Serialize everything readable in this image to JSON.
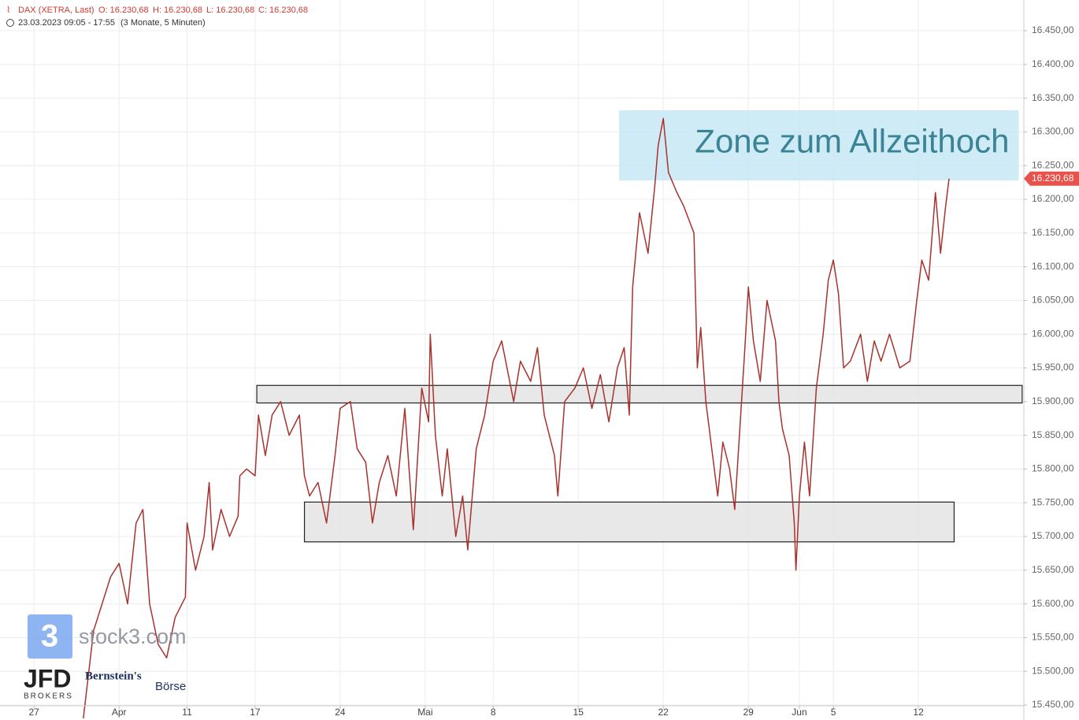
{
  "chart_data": {
    "type": "line",
    "header": {
      "instrument": "DAX (XETRA, Last)",
      "open": "O: 16.230,68",
      "high": "H: 16.230,68",
      "low": "L: 16.230,68",
      "close": "C: 16.230,68",
      "range": "23.03.2023 09:05 - 17:55",
      "period": "(3 Monate, 5 Minuten)"
    },
    "series": [
      {
        "color": "#a8322d",
        "x": [
          4.9,
          5.5,
          6.5,
          7.0,
          7.5,
          8.0,
          8.4,
          8.8,
          9.3,
          9.8,
          10.3,
          10.9,
          11.0,
          11.5,
          12.0,
          12.3,
          12.5,
          13.0,
          13.5,
          14.0,
          14.1,
          14.5,
          15.0,
          15.2,
          15.6,
          16.0,
          16.5,
          17.0,
          17.6,
          17.9,
          18.2,
          18.7,
          19.2,
          19.7,
          20.0,
          20.6,
          21.0,
          21.5,
          21.9,
          22.3,
          22.8,
          23.3,
          23.8,
          24.3,
          24.8,
          25.2,
          25.3,
          25.6,
          26.0,
          26.3,
          26.8,
          27.2,
          27.5,
          27.7,
          28.0,
          28.5,
          29.0,
          29.5,
          30.2,
          30.6,
          31.2,
          31.6,
          32.0,
          32.6,
          32.8,
          33.2,
          33.8,
          34.3,
          34.8,
          35.3,
          35.8,
          36.3,
          36.7,
          37.0,
          37.2,
          37.6,
          38.1,
          38.5,
          38.7,
          39.0,
          39.3,
          39.8,
          40.2,
          40.8,
          41.0,
          41.2,
          41.5,
          41.9,
          42.2,
          42.5,
          42.9,
          43.2,
          43.5,
          43.8,
          44.0,
          44.3,
          44.7,
          45.1,
          45.6,
          45.8,
          46.0,
          46.4,
          46.7,
          46.8,
          47.0,
          47.3,
          47.6,
          47.8,
          48.0,
          48.4,
          48.7,
          49.0,
          49.3,
          49.6,
          50.0,
          50.6,
          51.0,
          51.4,
          51.8,
          52.3,
          52.9,
          53.5,
          53.9,
          54.2,
          54.6,
          55.0,
          55.3,
          55.6,
          55.8
        ],
        "values": [
          15430,
          15560,
          15640,
          15660,
          15600,
          15720,
          15740,
          15600,
          15540,
          15520,
          15580,
          15610,
          15720,
          15650,
          15700,
          15780,
          15680,
          15740,
          15700,
          15730,
          15790,
          15800,
          15790,
          15880,
          15820,
          15880,
          15900,
          15850,
          15880,
          15790,
          15760,
          15780,
          15720,
          15820,
          15890,
          15900,
          15830,
          15810,
          15720,
          15780,
          15820,
          15760,
          15890,
          15710,
          15920,
          15870,
          16000,
          15850,
          15760,
          15830,
          15700,
          15760,
          15680,
          15740,
          15830,
          15880,
          15960,
          15990,
          15900,
          15960,
          15930,
          15980,
          15880,
          15820,
          15760,
          15900,
          15920,
          15950,
          15890,
          15940,
          15870,
          15950,
          15980,
          15880,
          16070,
          16180,
          16120,
          16220,
          16280,
          16320,
          16240,
          16210,
          16190,
          16150,
          15950,
          16010,
          15900,
          15820,
          15760,
          15840,
          15800,
          15740,
          15860,
          15980,
          16070,
          15990,
          15930,
          16050,
          15990,
          15900,
          15860,
          15820,
          15720,
          15650,
          15760,
          15840,
          15760,
          15840,
          15920,
          16000,
          16080,
          16110,
          16060,
          15950,
          15960,
          16000,
          15930,
          15990,
          15960,
          16000,
          15950,
          15960,
          16050,
          16110,
          16080,
          16210,
          16120,
          16190,
          16230.68
        ],
        "value_label": "16.230,68"
      }
    ],
    "xlim": [
      0,
      60.2
    ],
    "ylim": [
      15427.8,
      16495.6
    ],
    "xticks": [
      {
        "value": 2,
        "label": "27"
      },
      {
        "value": 7,
        "label": "Apr"
      },
      {
        "value": 11,
        "label": "11"
      },
      {
        "value": 15,
        "label": "17"
      },
      {
        "value": 20,
        "label": "24"
      },
      {
        "value": 25,
        "label": "Mai"
      },
      {
        "value": 29,
        "label": "8"
      },
      {
        "value": 34,
        "label": "15"
      },
      {
        "value": 39,
        "label": "22"
      },
      {
        "value": 44,
        "label": "29"
      },
      {
        "value": 47,
        "label": "Jun"
      },
      {
        "value": 49,
        "label": "5"
      },
      {
        "value": 54,
        "label": "12"
      }
    ],
    "yticks": [
      {
        "value": 15450,
        "label": "15.450,00"
      },
      {
        "value": 15500,
        "label": "15.500,00"
      },
      {
        "value": 15550,
        "label": "15.550,00"
      },
      {
        "value": 15600,
        "label": "15.600,00"
      },
      {
        "value": 15650,
        "label": "15.650,00"
      },
      {
        "value": 15700,
        "label": "15.700,00"
      },
      {
        "value": 15750,
        "label": "15.750,00"
      },
      {
        "value": 15800,
        "label": "15.800,00"
      },
      {
        "value": 15850,
        "label": "15.850,00"
      },
      {
        "value": 15900,
        "label": "15.900,00"
      },
      {
        "value": 15950,
        "label": "15.950,00"
      },
      {
        "value": 16000,
        "label": "16.000,00"
      },
      {
        "value": 16050,
        "label": "16.050,00"
      },
      {
        "value": 16100,
        "label": "16.100,00"
      },
      {
        "value": 16150,
        "label": "16.150,00"
      },
      {
        "value": 16200,
        "label": "16.200,00"
      },
      {
        "value": 16250,
        "label": "16.250,00"
      },
      {
        "value": 16300,
        "label": "16.300,00"
      },
      {
        "value": 16350,
        "label": "16.350,00"
      },
      {
        "value": 16400,
        "label": "16.400,00"
      },
      {
        "value": 16450,
        "label": "16.450,00"
      }
    ],
    "grid": true,
    "zones": [
      {
        "label": "Zone zum Allzeithoch",
        "color": "#c5e7f4",
        "xlim": [
          36.4,
          59.9
        ],
        "ylim": [
          16228,
          16332
        ]
      },
      {
        "color": "#e4e4e4",
        "xlim": [
          15.1,
          60.1
        ],
        "ylim": [
          15898,
          15924
        ]
      },
      {
        "color": "#e4e4e4",
        "xlim": [
          17.9,
          56.1
        ],
        "ylim": [
          15692,
          15751
        ]
      }
    ],
    "logos": {
      "stock3_icon": "3",
      "stock3": "stock3.com",
      "jfd": "JFD",
      "jfd_sub": "BROKERS",
      "bernstein": "Bernstein's",
      "boerse": "Börse"
    }
  }
}
